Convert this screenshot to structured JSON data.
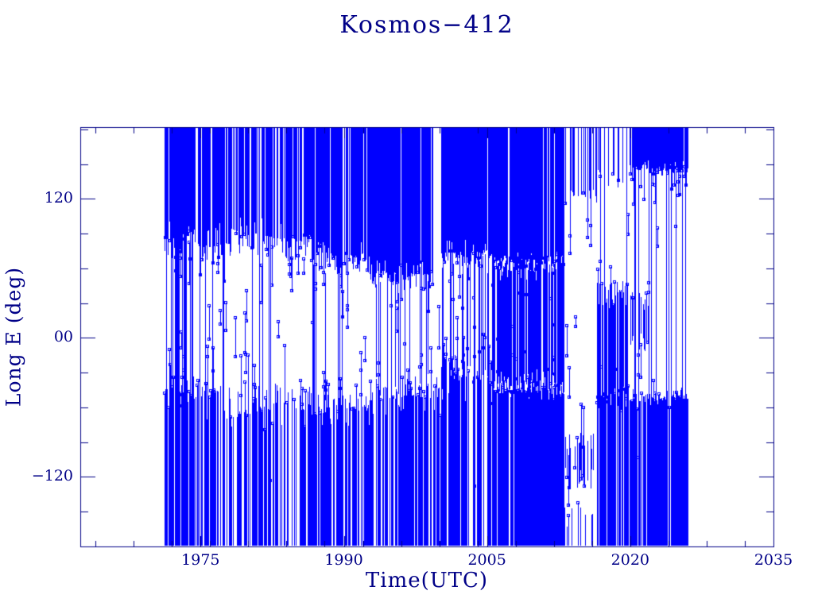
{
  "figure": {
    "title": "Kosmos−412",
    "x_axis_label": "Time(UTC)",
    "y_axis_label": "Long E (deg)"
  },
  "colors": {
    "data_blue": "#0000FF",
    "axis_navy": "#000087",
    "background": "#FFFFFF"
  },
  "chart_data": {
    "type": "scatter",
    "title": "Kosmos−412",
    "xlabel": "Time(UTC)",
    "ylabel": "Long E (deg)",
    "xlim": [
      1962.4,
      2035.0
    ],
    "ylim": [
      -180,
      182
    ],
    "x_major_ticks": [
      1975,
      1990,
      2005,
      2020,
      2035
    ],
    "x_tick_labels": [
      "1975",
      "1990",
      "2005",
      "2020",
      "2035"
    ],
    "x_minor_tick_start": 1964,
    "x_minor_tick_step": 4,
    "x_minor_tick_end": 2032,
    "y_major_ticks": [
      120,
      0,
      -120
    ],
    "y_tick_labels": [
      "120",
      "00",
      "−120"
    ],
    "y_minor_tick_step": 30,
    "grid": false,
    "legend": null,
    "marker": "open-square",
    "line_style": "vertical-connected-samples",
    "data_start_year": 1971.2,
    "data_end_year": 2026.1,
    "note": "East-longitude of sub-satellite point vs time; thousands of overlapping samples form solid bands near +120..+180 and -60..-180 deg, with full-height wrap lines; regions below summarize observed density",
    "regions": [
      {
        "from": 1971.2,
        "to": 1974.3,
        "full_lines": 0.5,
        "mid_lines": 0.0,
        "mid_markers": 0.25,
        "mid_range": [
          95,
          -55
        ],
        "bands": [
          {
            "top": 182,
            "bottom": 95,
            "p": 0.95,
            "ragged": 22,
            "chain_p": 0.12,
            "chain_reach": 45
          },
          {
            "top": -55,
            "bottom": -180,
            "p": 0.75,
            "ragged": 22,
            "chain_p": 0.12,
            "chain_reach": 40
          }
        ]
      },
      {
        "from": 1974.3,
        "to": 1978.1,
        "full_lines": 0.06,
        "mid_lines": 0.0,
        "mid_markers": 0.05,
        "mid_range": [
          80,
          -40
        ],
        "bands": [
          {
            "top": 182,
            "bottom": 92,
            "p": 0.85,
            "ragged": 20,
            "chain_p": 0.12,
            "chain_reach": 50
          },
          {
            "top": -62,
            "bottom": -180,
            "p": 0.6,
            "ragged": 22,
            "chain_p": 0.14,
            "chain_reach": 45
          }
        ]
      },
      {
        "from": 1978.1,
        "to": 1986.6,
        "full_lines": 0.055,
        "mid_lines": 0.0,
        "mid_markers": 0.05,
        "mid_range": [
          70,
          -35
        ],
        "bands": [
          {
            "top": 182,
            "bottom": 96,
            "p": 0.72,
            "ragged": 24,
            "chain_p": 0.1,
            "chain_reach": 55
          },
          {
            "top": -70,
            "bottom": -180,
            "p": 0.62,
            "ragged": 26,
            "chain_p": 0.13,
            "chain_reach": 50
          }
        ]
      },
      {
        "from": 1986.6,
        "to": 1992.7,
        "full_lines": 0.07,
        "mid_lines": 0.03,
        "mid_markers": 0.05,
        "mid_range": [
          65,
          -40
        ],
        "bands": [
          {
            "top": 182,
            "bottom": 78,
            "p": 0.85,
            "ragged": 20,
            "chain_p": 0.1,
            "chain_reach": 45
          },
          {
            "top": -68,
            "bottom": -180,
            "p": 0.8,
            "ragged": 20,
            "chain_p": 0.1,
            "chain_reach": 40
          }
        ]
      },
      {
        "from": 1992.7,
        "to": 1999.4,
        "full_lines": 0.09,
        "mid_lines": 0.06,
        "mid_markers": 0.05,
        "mid_range": [
          55,
          -40
        ],
        "bands": [
          {
            "top": 182,
            "bottom": 62,
            "p": 0.92,
            "ragged": 18,
            "chain_p": 0.09,
            "chain_reach": 40
          },
          {
            "top": -58,
            "bottom": -180,
            "p": 0.7,
            "ragged": 22,
            "chain_p": 0.12,
            "chain_reach": 40
          }
        ]
      },
      {
        "from": 1999.4,
        "to": 2000.2,
        "full_lines": 0.0,
        "mid_lines": 0.0,
        "mid_markers": 0.02,
        "mid_range": [
          40,
          -40
        ],
        "bands": [
          {
            "top": -60,
            "bottom": -180,
            "p": 0.38,
            "ragged": 25,
            "chain_p": 0.1,
            "chain_reach": 30
          }
        ]
      },
      {
        "from": 2000.2,
        "to": 2005.5,
        "full_lines": 0.1,
        "mid_lines": 0.17,
        "mid_markers": 0.06,
        "mid_range": [
          60,
          -35
        ],
        "bands": [
          {
            "top": 182,
            "bottom": 80,
            "p": 0.95,
            "ragged": 16,
            "chain_p": 0.08,
            "chain_reach": 40
          },
          {
            "top": -45,
            "bottom": -180,
            "p": 0.72,
            "ragged": 26,
            "chain_p": 0.12,
            "chain_reach": 40
          }
        ]
      },
      {
        "from": 2005.5,
        "to": 2013.1,
        "full_lines": 0.25,
        "mid_lines": 0.8,
        "mid_markers": 0.12,
        "mid_range": [
          70,
          -48
        ],
        "bands": [
          {
            "top": 182,
            "bottom": 72,
            "p": 1.0,
            "ragged": 12,
            "chain_p": 0.05,
            "chain_reach": 25
          },
          {
            "top": -50,
            "bottom": -180,
            "p": 0.93,
            "ragged": 12,
            "chain_p": 0.06,
            "chain_reach": 25
          }
        ]
      },
      {
        "from": 2013.1,
        "to": 2016.5,
        "full_lines": 0.04,
        "mid_lines": 0.0,
        "mid_markers": 0.05,
        "mid_range": [
          30,
          -40
        ],
        "bands": [
          {
            "top": 182,
            "bottom": 134,
            "p": 0.5,
            "ragged": 16,
            "chain_p": 0.16,
            "chain_reach": 55
          },
          {
            "top": -85,
            "bottom": -132,
            "p": 0.42,
            "ragged": 22,
            "chain_p": 0.12,
            "chain_reach": 35
          },
          {
            "top": -158,
            "bottom": -180,
            "p": 0.3,
            "ragged": 12,
            "chain_p": 0.08,
            "chain_reach": 15
          }
        ]
      },
      {
        "from": 2016.5,
        "to": 2019.9,
        "full_lines": 0.06,
        "mid_lines": 0.0,
        "mid_markers": 0.04,
        "mid_range": [
          150,
          60
        ],
        "bands": [
          {
            "top": 182,
            "bottom": 150,
            "p": 0.22,
            "ragged": 18,
            "chain_p": 0.1,
            "chain_reach": 30
          },
          {
            "top": 48,
            "bottom": -65,
            "p": 0.68,
            "ragged": 24,
            "chain_p": 0.12,
            "chain_reach": 30
          },
          {
            "top": -55,
            "bottom": -180,
            "p": 0.8,
            "ragged": 16,
            "chain_p": 0.08,
            "chain_reach": 25
          }
        ]
      },
      {
        "from": 2019.9,
        "to": 2021.9,
        "full_lines": 0.08,
        "mid_lines": 0.0,
        "mid_markers": 0.06,
        "mid_range": [
          120,
          -45
        ],
        "bands": [
          {
            "top": 182,
            "bottom": 152,
            "p": 0.98,
            "ragged": 8,
            "chain_p": 0.12,
            "chain_reach": 30
          },
          {
            "top": 40,
            "bottom": -10,
            "p": 0.45,
            "ragged": 18,
            "chain_p": 0.12,
            "chain_reach": 25
          },
          {
            "top": -58,
            "bottom": -180,
            "p": 0.92,
            "ragged": 12,
            "chain_p": 0.06,
            "chain_reach": 20
          }
        ]
      },
      {
        "from": 2021.9,
        "to": 2026.1,
        "full_lines": 0.07,
        "mid_lines": 0.0,
        "mid_markers": 0.06,
        "mid_range": [
          130,
          -45
        ],
        "bands": [
          {
            "top": 182,
            "bottom": 150,
            "p": 0.99,
            "ragged": 9,
            "chain_p": 0.1,
            "chain_reach": 30
          },
          {
            "top": -56,
            "bottom": -180,
            "p": 0.95,
            "ragged": 11,
            "chain_p": 0.05,
            "chain_reach": 20
          }
        ]
      }
    ]
  }
}
